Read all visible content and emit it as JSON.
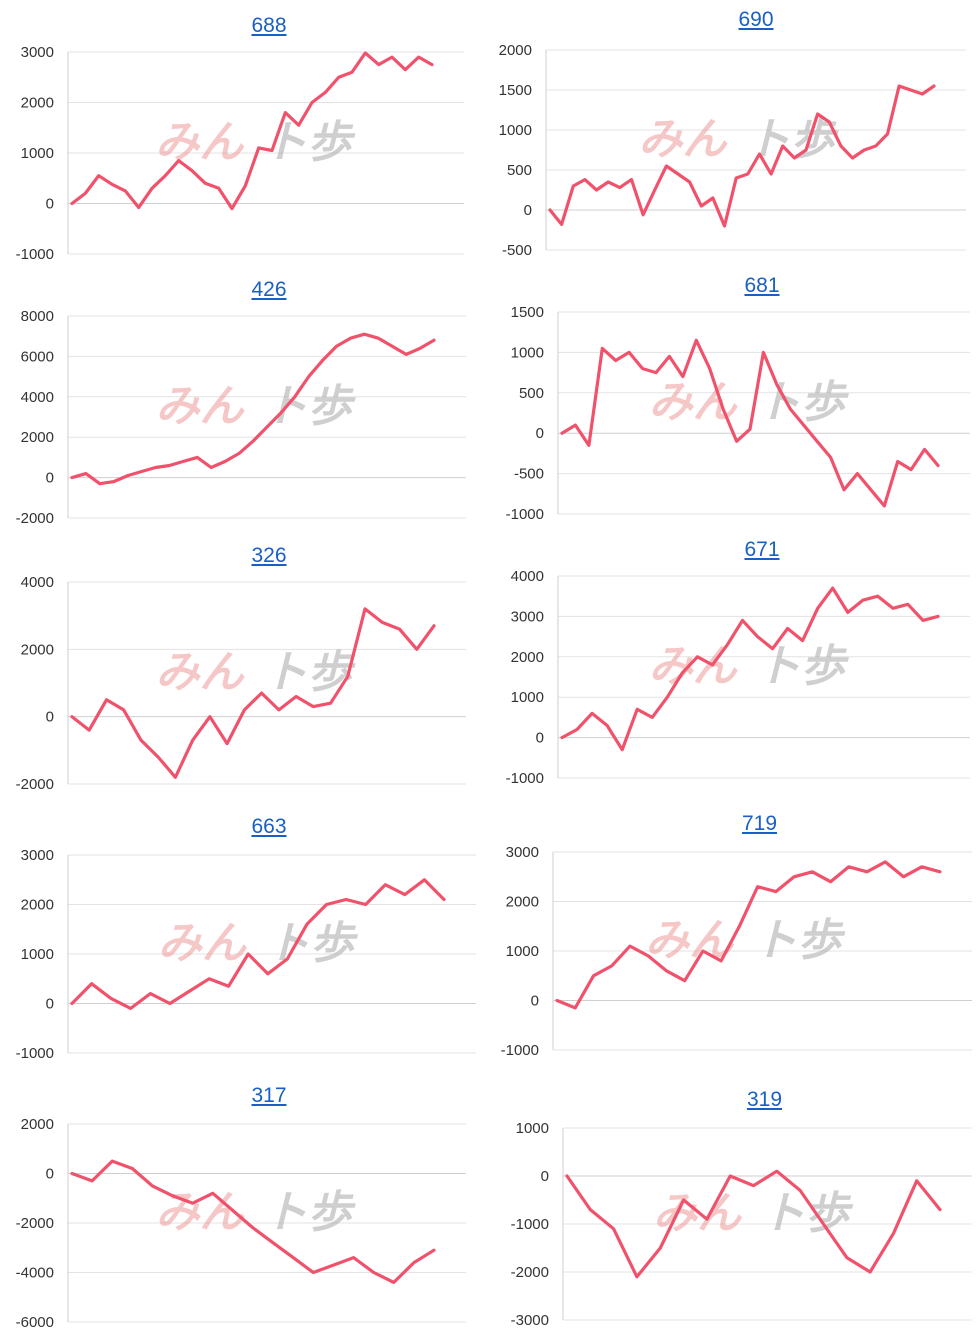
{
  "watermark": {
    "part1": "みん",
    "part2": "ト歩"
  },
  "chart_data": [
    {
      "type": "line",
      "title": "688",
      "ylim": [
        -1000,
        3000
      ],
      "yticks": [
        3000,
        2000,
        1000,
        0,
        -1000
      ],
      "series": [
        {
          "values": [
            0,
            200,
            550,
            380,
            250,
            -80,
            300,
            550,
            850,
            650,
            400,
            300,
            -100,
            350,
            1100,
            1050,
            1800,
            1550,
            2000,
            2200,
            2500,
            2600,
            2980,
            2750,
            2900,
            2650,
            2900,
            2750
          ]
        }
      ]
    },
    {
      "type": "line",
      "title": "690",
      "ylim": [
        -500,
        2000
      ],
      "yticks": [
        2000,
        1500,
        1000,
        500,
        0,
        -500
      ],
      "series": [
        {
          "values": [
            0,
            -180,
            300,
            380,
            250,
            350,
            280,
            380,
            -60,
            250,
            550,
            450,
            350,
            50,
            150,
            -200,
            400,
            450,
            700,
            450,
            800,
            650,
            750,
            1200,
            1100,
            800,
            650,
            750,
            800,
            950,
            1550,
            1500,
            1450,
            1550
          ]
        }
      ]
    },
    {
      "type": "line",
      "title": "426",
      "ylim": [
        -2000,
        8000
      ],
      "yticks": [
        8000,
        6000,
        4000,
        2000,
        0,
        -2000
      ],
      "series": [
        {
          "values": [
            0,
            200,
            -300,
            -200,
            100,
            300,
            500,
            600,
            800,
            1000,
            500,
            800,
            1200,
            1800,
            2500,
            3200,
            4000,
            5000,
            5800,
            6500,
            6900,
            7100,
            6900,
            6500,
            6100,
            6400,
            6800
          ]
        }
      ]
    },
    {
      "type": "line",
      "title": "681",
      "ylim": [
        -1000,
        1500
      ],
      "yticks": [
        1500,
        1000,
        500,
        0,
        -500,
        -1000
      ],
      "series": [
        {
          "values": [
            0,
            100,
            -150,
            1050,
            900,
            1000,
            800,
            750,
            950,
            700,
            1150,
            800,
            300,
            -100,
            50,
            1000,
            600,
            300,
            100,
            -100,
            -300,
            -700,
            -500,
            -700,
            -900,
            -350,
            -450,
            -200,
            -400
          ]
        }
      ]
    },
    {
      "type": "line",
      "title": "326",
      "ylim": [
        -2000,
        4000
      ],
      "yticks": [
        4000,
        2000,
        0,
        -2000
      ],
      "series": [
        {
          "values": [
            0,
            -400,
            500,
            200,
            -700,
            -1200,
            -1800,
            -700,
            0,
            -800,
            200,
            700,
            200,
            600,
            300,
            400,
            1200,
            3200,
            2800,
            2600,
            2000,
            2700
          ]
        }
      ]
    },
    {
      "type": "line",
      "title": "671",
      "ylim": [
        -1000,
        4000
      ],
      "yticks": [
        4000,
        3000,
        2000,
        1000,
        0,
        -1000
      ],
      "series": [
        {
          "values": [
            0,
            200,
            600,
            300,
            -300,
            700,
            500,
            1000,
            1600,
            2000,
            1800,
            2300,
            2900,
            2500,
            2200,
            2700,
            2400,
            3200,
            3700,
            3100,
            3400,
            3500,
            3200,
            3300,
            2900,
            3000
          ]
        }
      ]
    },
    {
      "type": "line",
      "title": "663",
      "ylim": [
        -1000,
        3000
      ],
      "yticks": [
        3000,
        2000,
        1000,
        0,
        -1000
      ],
      "series": [
        {
          "values": [
            0,
            400,
            100,
            -100,
            200,
            0,
            250,
            500,
            350,
            1000,
            600,
            900,
            1600,
            2000,
            2100,
            2000,
            2400,
            2200,
            2500,
            2100
          ]
        }
      ]
    },
    {
      "type": "line",
      "title": "719",
      "ylim": [
        -1000,
        3000
      ],
      "yticks": [
        3000,
        2000,
        1000,
        0,
        -1000
      ],
      "series": [
        {
          "values": [
            0,
            -150,
            500,
            700,
            1100,
            900,
            600,
            400,
            1000,
            800,
            1500,
            2300,
            2200,
            2500,
            2600,
            2400,
            2700,
            2600,
            2800,
            2500,
            2700,
            2600
          ]
        }
      ]
    },
    {
      "type": "line",
      "title": "317",
      "ylim": [
        -6000,
        2000
      ],
      "yticks": [
        2000,
        0,
        -2000,
        -4000,
        -6000
      ],
      "series": [
        {
          "values": [
            0,
            -300,
            500,
            200,
            -500,
            -900,
            -1200,
            -800,
            -1500,
            -2200,
            -2800,
            -3400,
            -4000,
            -3700,
            -3400,
            -4000,
            -4400,
            -3600,
            -3100
          ]
        }
      ]
    },
    {
      "type": "line",
      "title": "319",
      "ylim": [
        -3000,
        1000
      ],
      "yticks": [
        1000,
        0,
        -1000,
        -2000,
        -3000
      ],
      "series": [
        {
          "values": [
            0,
            -700,
            -1100,
            -2100,
            -1500,
            -500,
            -900,
            0,
            -200,
            100,
            -300,
            -1000,
            -1700,
            -2000,
            -1200,
            -100,
            -700
          ]
        }
      ]
    }
  ]
}
